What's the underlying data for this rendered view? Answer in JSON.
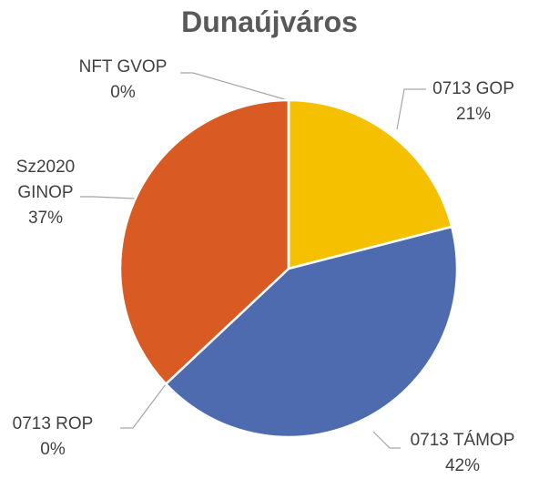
{
  "chart_data": {
    "type": "pie",
    "title": "Dunaújváros",
    "categories": [
      "0713 GOP",
      "0713 TÁMOP",
      "0713 ROP",
      "Sz2020 GINOP",
      "NFT GVOP"
    ],
    "values": [
      21,
      42,
      0,
      37,
      0
    ],
    "value_labels": [
      "21%",
      "42%",
      "0%",
      "37%",
      "0%"
    ],
    "colors": [
      "#f4c000",
      "#4e6bb0",
      "#5a9bd5",
      "#d95a22",
      "#a5a5a5"
    ]
  }
}
